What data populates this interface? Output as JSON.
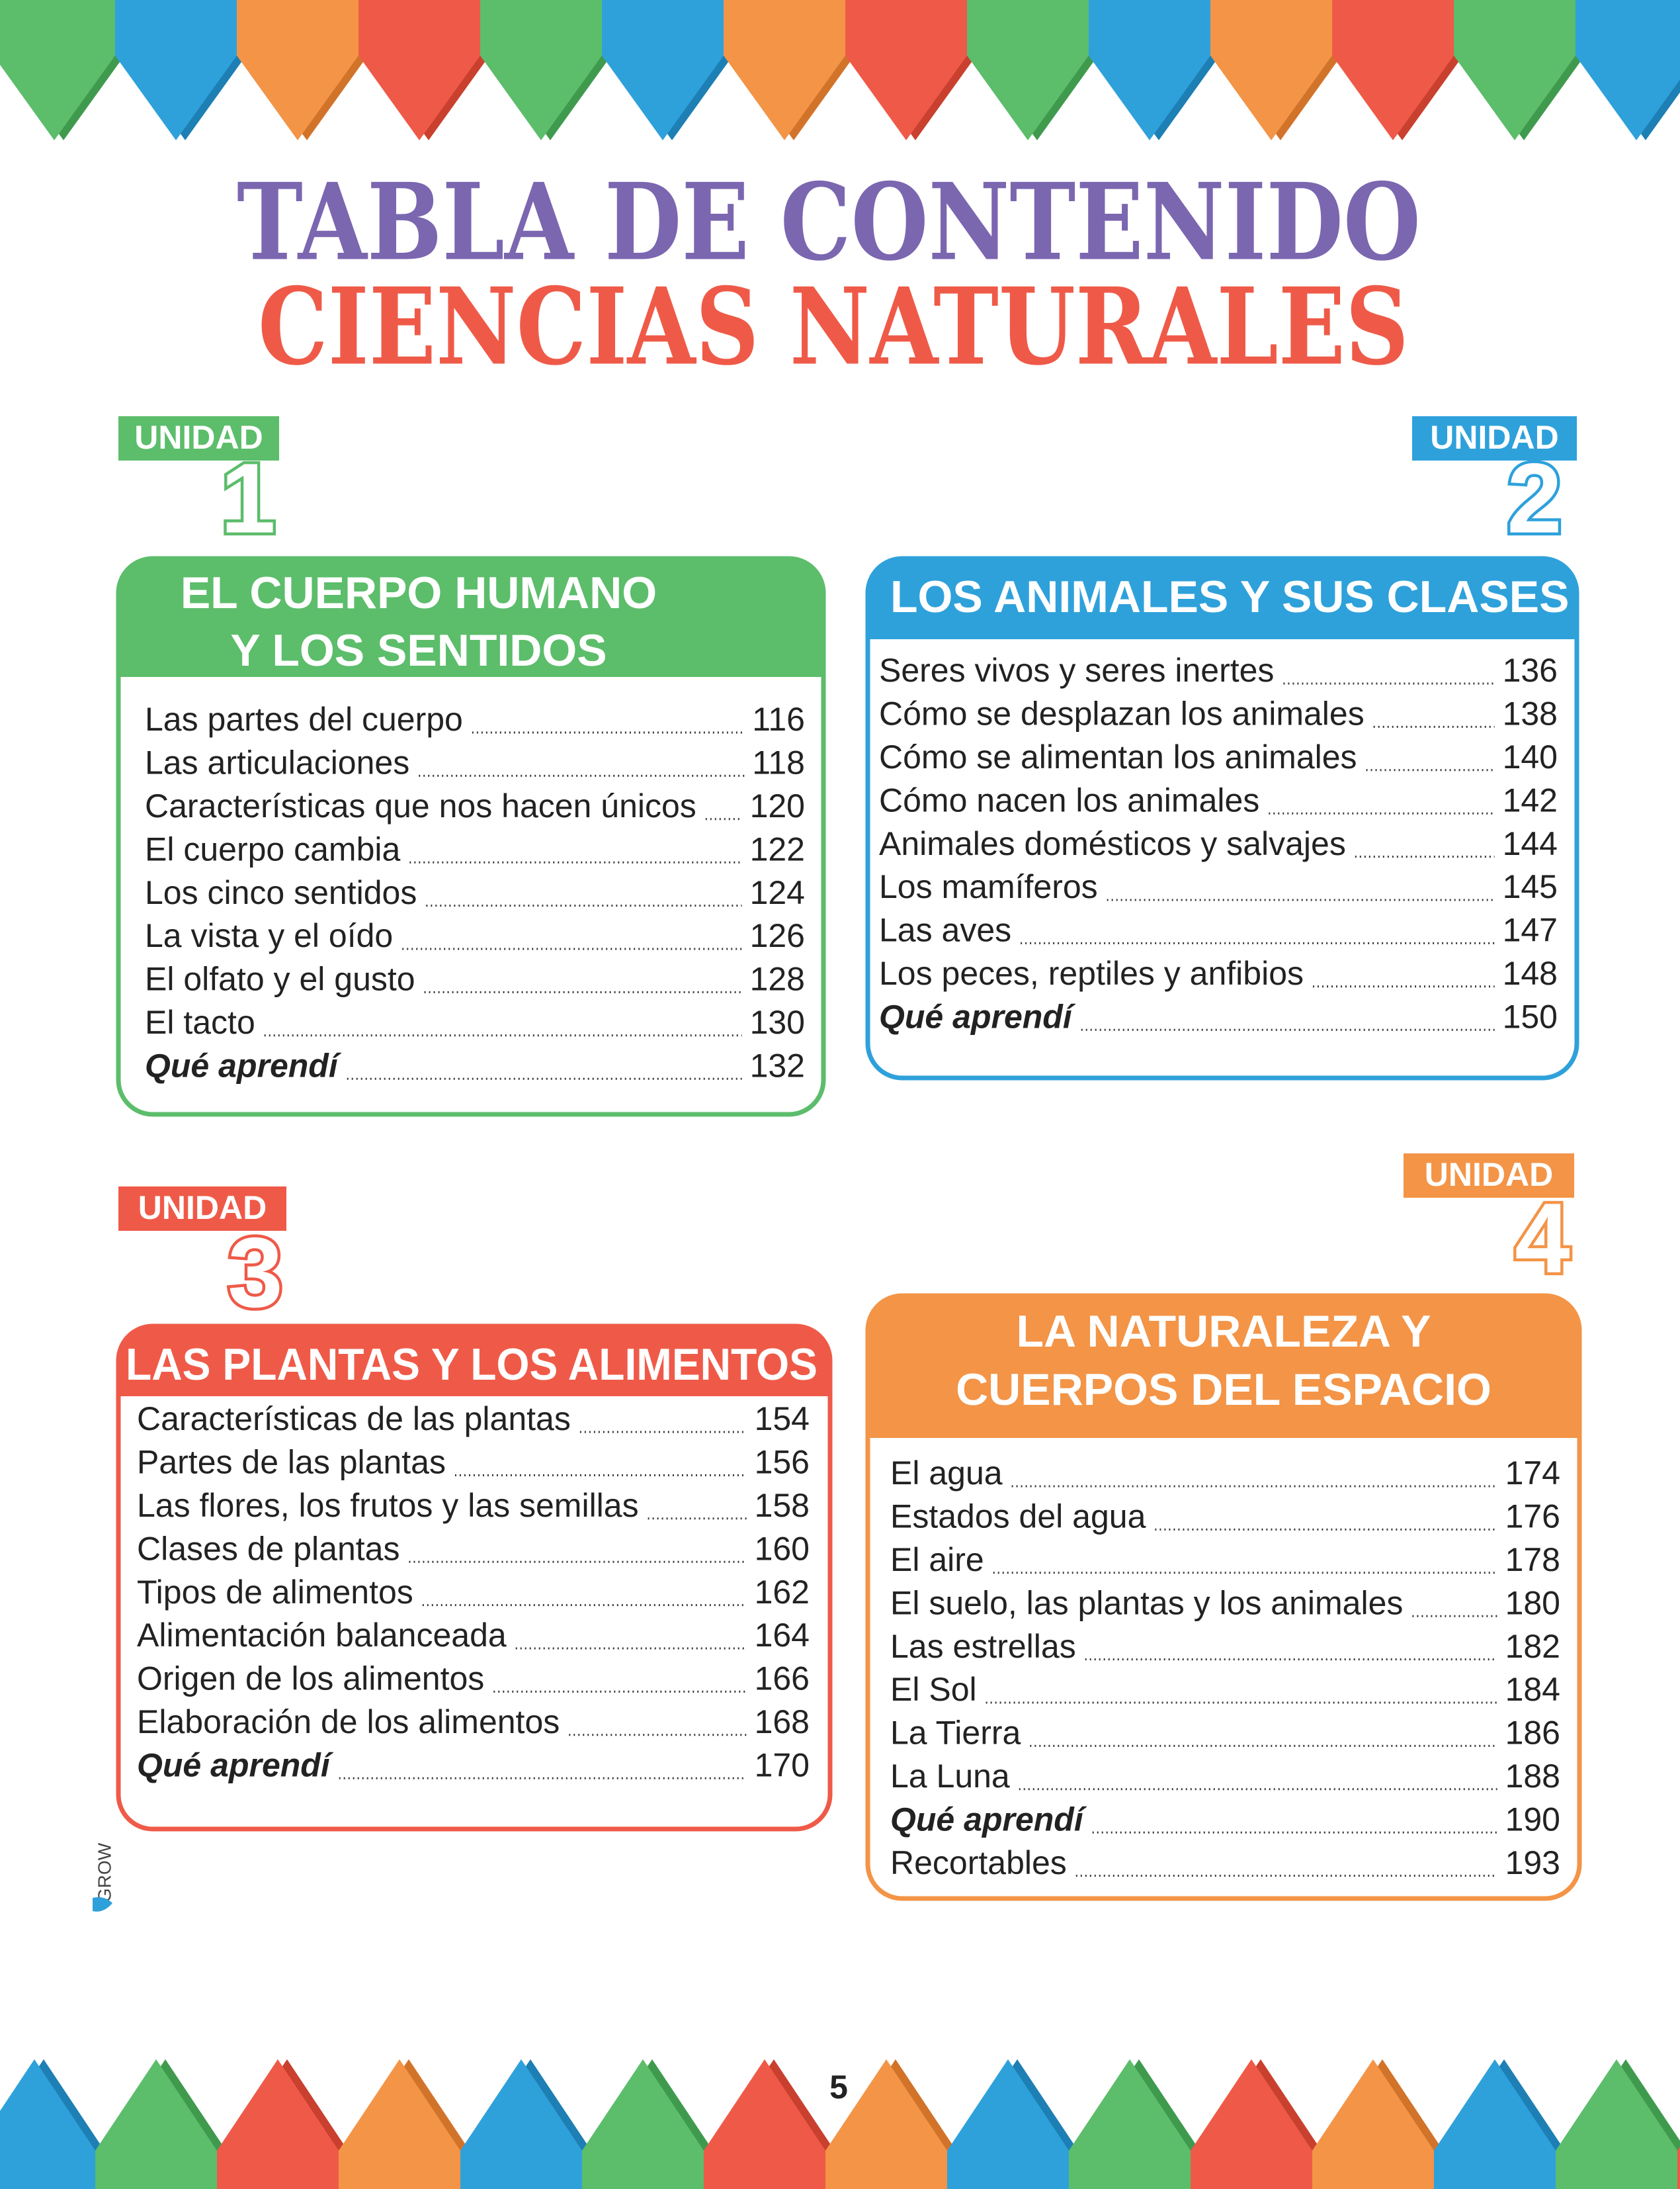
{
  "header": {
    "title": "TABLA DE CONTENIDO",
    "subtitle": "CIENCIAS NATURALES"
  },
  "units": [
    {
      "label": "UNIDAD",
      "number": 1,
      "color": "#5cbd6b",
      "title_lines": [
        "EL CUERPO HUMANO",
        "Y LOS SENTIDOS"
      ],
      "entries": [
        {
          "text": "Las partes del cuerpo",
          "page": 116
        },
        {
          "text": "Las articulaciones",
          "page": 118
        },
        {
          "text": "Características que nos hacen únicos",
          "page": 120
        },
        {
          "text": "El cuerpo cambia",
          "page": 122
        },
        {
          "text": "Los cinco sentidos",
          "page": 124
        },
        {
          "text": "La vista y el oído",
          "page": 126
        },
        {
          "text": "El olfato y el gusto",
          "page": 128
        },
        {
          "text": "El tacto",
          "page": 130
        },
        {
          "text": "Qué aprendí",
          "page": 132,
          "emphasis": true
        }
      ]
    },
    {
      "label": "UNIDAD",
      "number": 2,
      "color": "#2ea1db",
      "title_lines": [
        "LOS ANIMALES Y SUS CLASES"
      ],
      "entries": [
        {
          "text": "Seres vivos y seres inertes",
          "page": 136
        },
        {
          "text": "Cómo se desplazan los animales",
          "page": 138
        },
        {
          "text": "Cómo se alimentan los animales",
          "page": 140
        },
        {
          "text": "Cómo nacen los animales",
          "page": 142
        },
        {
          "text": "Animales domésticos y salvajes",
          "page": 144
        },
        {
          "text": "Los mamíferos",
          "page": 145
        },
        {
          "text": "Las aves",
          "page": 147
        },
        {
          "text": "Los peces, reptiles y anfibios",
          "page": 148
        },
        {
          "text": "Qué aprendí",
          "page": 150,
          "emphasis": true
        }
      ]
    },
    {
      "label": "UNIDAD",
      "number": 3,
      "color": "#ef5a48",
      "title_lines": [
        "LAS PLANTAS Y LOS ALIMENTOS"
      ],
      "entries": [
        {
          "text": "Características de las plantas",
          "page": 154
        },
        {
          "text": "Partes de las plantas",
          "page": 156
        },
        {
          "text": "Las flores, los frutos y las semillas",
          "page": 158
        },
        {
          "text": "Clases de plantas",
          "page": 160
        },
        {
          "text": "Tipos de alimentos",
          "page": 162
        },
        {
          "text": "Alimentación balanceada",
          "page": 164
        },
        {
          "text": "Origen de los alimentos",
          "page": 166
        },
        {
          "text": "Elaboración de los alimentos",
          "page": 168
        },
        {
          "text": "Qué aprendí",
          "page": 170,
          "emphasis": true
        }
      ]
    },
    {
      "label": "UNIDAD",
      "number": 4,
      "color": "#f39447",
      "title_lines": [
        "LA NATURALEZA Y",
        "CUERPOS DEL ESPACIO"
      ],
      "entries": [
        {
          "text": "El agua",
          "page": 174
        },
        {
          "text": "Estados del agua",
          "page": 176
        },
        {
          "text": "El aire",
          "page": 178
        },
        {
          "text": "El suelo, las plantas y los animales",
          "page": 180
        },
        {
          "text": "Las estrellas",
          "page": 182
        },
        {
          "text": "El Sol",
          "page": 184
        },
        {
          "text": "La Tierra",
          "page": 186
        },
        {
          "text": "La Luna",
          "page": 188
        },
        {
          "text": "Qué aprendí",
          "page": 190,
          "emphasis": true
        },
        {
          "text": "Recortables",
          "page": 193
        }
      ]
    }
  ],
  "page_number": 5,
  "brand": "GROW"
}
